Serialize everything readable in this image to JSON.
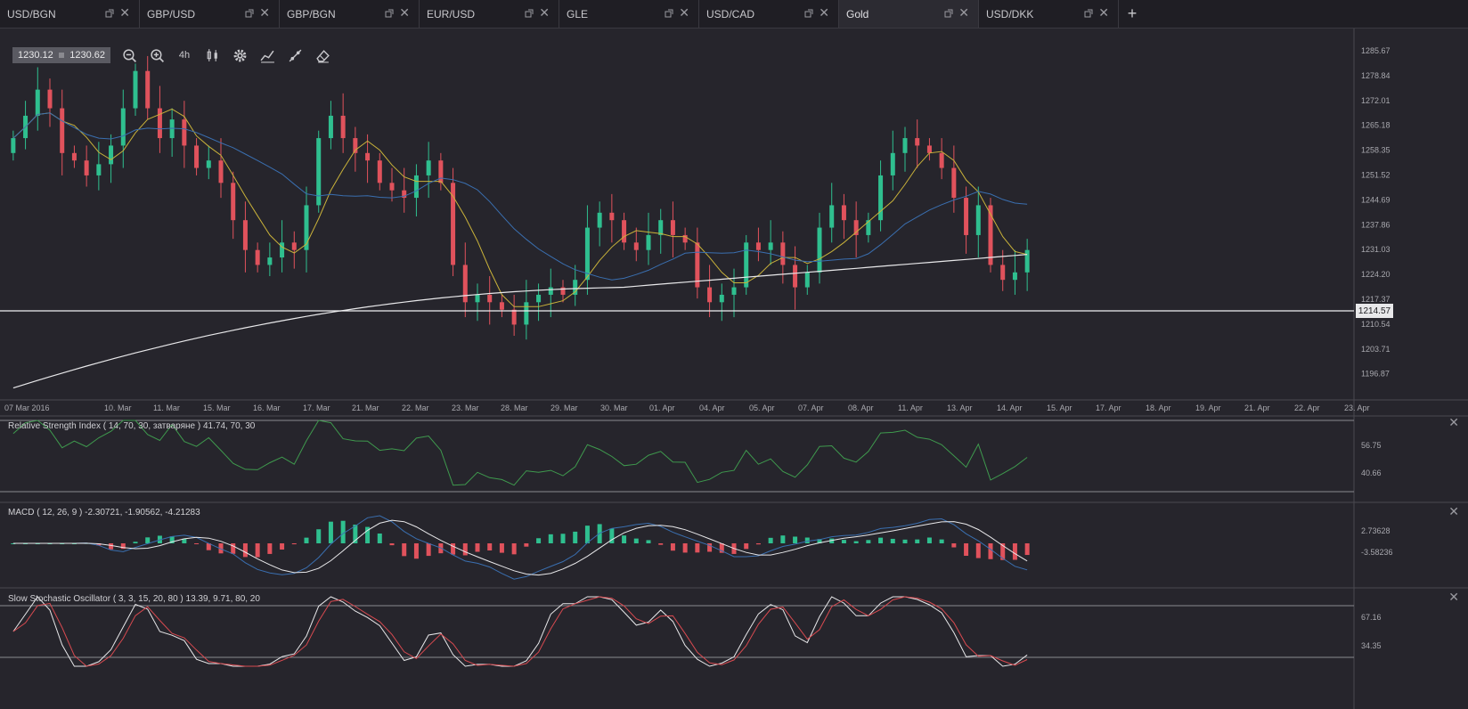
{
  "tabs": [
    {
      "label": "USD/BGN",
      "active": false
    },
    {
      "label": "GBP/USD",
      "active": false
    },
    {
      "label": "GBP/BGN",
      "active": false
    },
    {
      "label": "EUR/USD",
      "active": false
    },
    {
      "label": "GLE",
      "active": false
    },
    {
      "label": "USD/CAD",
      "active": false
    },
    {
      "label": "Gold",
      "active": true
    },
    {
      "label": "USD/DKK",
      "active": false
    }
  ],
  "tab_add_label": "+",
  "toolbar": {
    "bid": "1230.12",
    "ask": "1230.62",
    "timeframe": "4h"
  },
  "price_axis": [
    "1285.67",
    "1278.84",
    "1272.01",
    "1265.18",
    "1258.35",
    "1251.52",
    "1244.69",
    "1237.86",
    "1231.03",
    "1224.20",
    "1217.37",
    "1210.54",
    "1203.71",
    "1196.87"
  ],
  "time_axis": [
    "07 Mar 2016",
    "10. Mar",
    "11. Mar",
    "15. Mar",
    "16. Mar",
    "17. Mar",
    "21. Mar",
    "22. Mar",
    "23. Mar",
    "28. Mar",
    "29. Mar",
    "30. Mar",
    "01. Apr",
    "04. Apr",
    "05. Apr",
    "07. Apr",
    "08. Apr",
    "11. Apr",
    "13. Apr",
    "14. Apr",
    "15. Apr",
    "17. Apr",
    "18. Apr",
    "19. Apr",
    "21. Apr",
    "22. Apr",
    "23. Apr"
  ],
  "horizontal_line": {
    "price": "1214.57"
  },
  "indicators": {
    "rsi": {
      "label": "Relative Strength Index ( 14, 70, 30, затваряне ) 41.74, 70, 30",
      "axis": [
        "56.75",
        "40.66"
      ]
    },
    "macd": {
      "label": "MACD ( 12, 26, 9 ) -2.30721, -1.90562, -4.21283",
      "axis": [
        "2.73628",
        "-3.58236"
      ]
    },
    "stoch": {
      "label": "Slow Stochastic Oscillator ( 3, 3, 15, 20, 80 ) 13.39, 9.71, 80, 20",
      "axis": [
        "67.16",
        "34.35"
      ]
    }
  },
  "colors": {
    "up": "#2fbf8f",
    "down": "#e0525c",
    "sma_fast": "#c9b23a",
    "sma_mid": "#3a6fb0",
    "sma_slow": "#e8e8ea"
  },
  "chart_data": {
    "type": "candlestick",
    "closes": [
      1262,
      1268,
      1275,
      1270,
      1258,
      1256,
      1252,
      1255,
      1260,
      1270,
      1280,
      1270,
      1262,
      1267,
      1260,
      1254,
      1256,
      1250,
      1240,
      1232,
      1228,
      1230,
      1234,
      1232,
      1244,
      1262,
      1268,
      1262,
      1258,
      1256,
      1250,
      1248,
      1246,
      1252,
      1256,
      1250,
      1228,
      1218,
      1220,
      1218,
      1216,
      1212,
      1218,
      1220,
      1222,
      1220,
      1224,
      1238,
      1242,
      1240,
      1234,
      1232,
      1236,
      1240,
      1236,
      1234,
      1222,
      1218,
      1220,
      1222,
      1234,
      1232,
      1234,
      1228,
      1222,
      1226,
      1238,
      1244,
      1240,
      1236,
      1240,
      1252,
      1258,
      1262,
      1260,
      1258,
      1254,
      1246,
      1236,
      1244,
      1228,
      1224,
      1226,
      1232
    ],
    "ylim": [
      1193,
      1289
    ]
  }
}
